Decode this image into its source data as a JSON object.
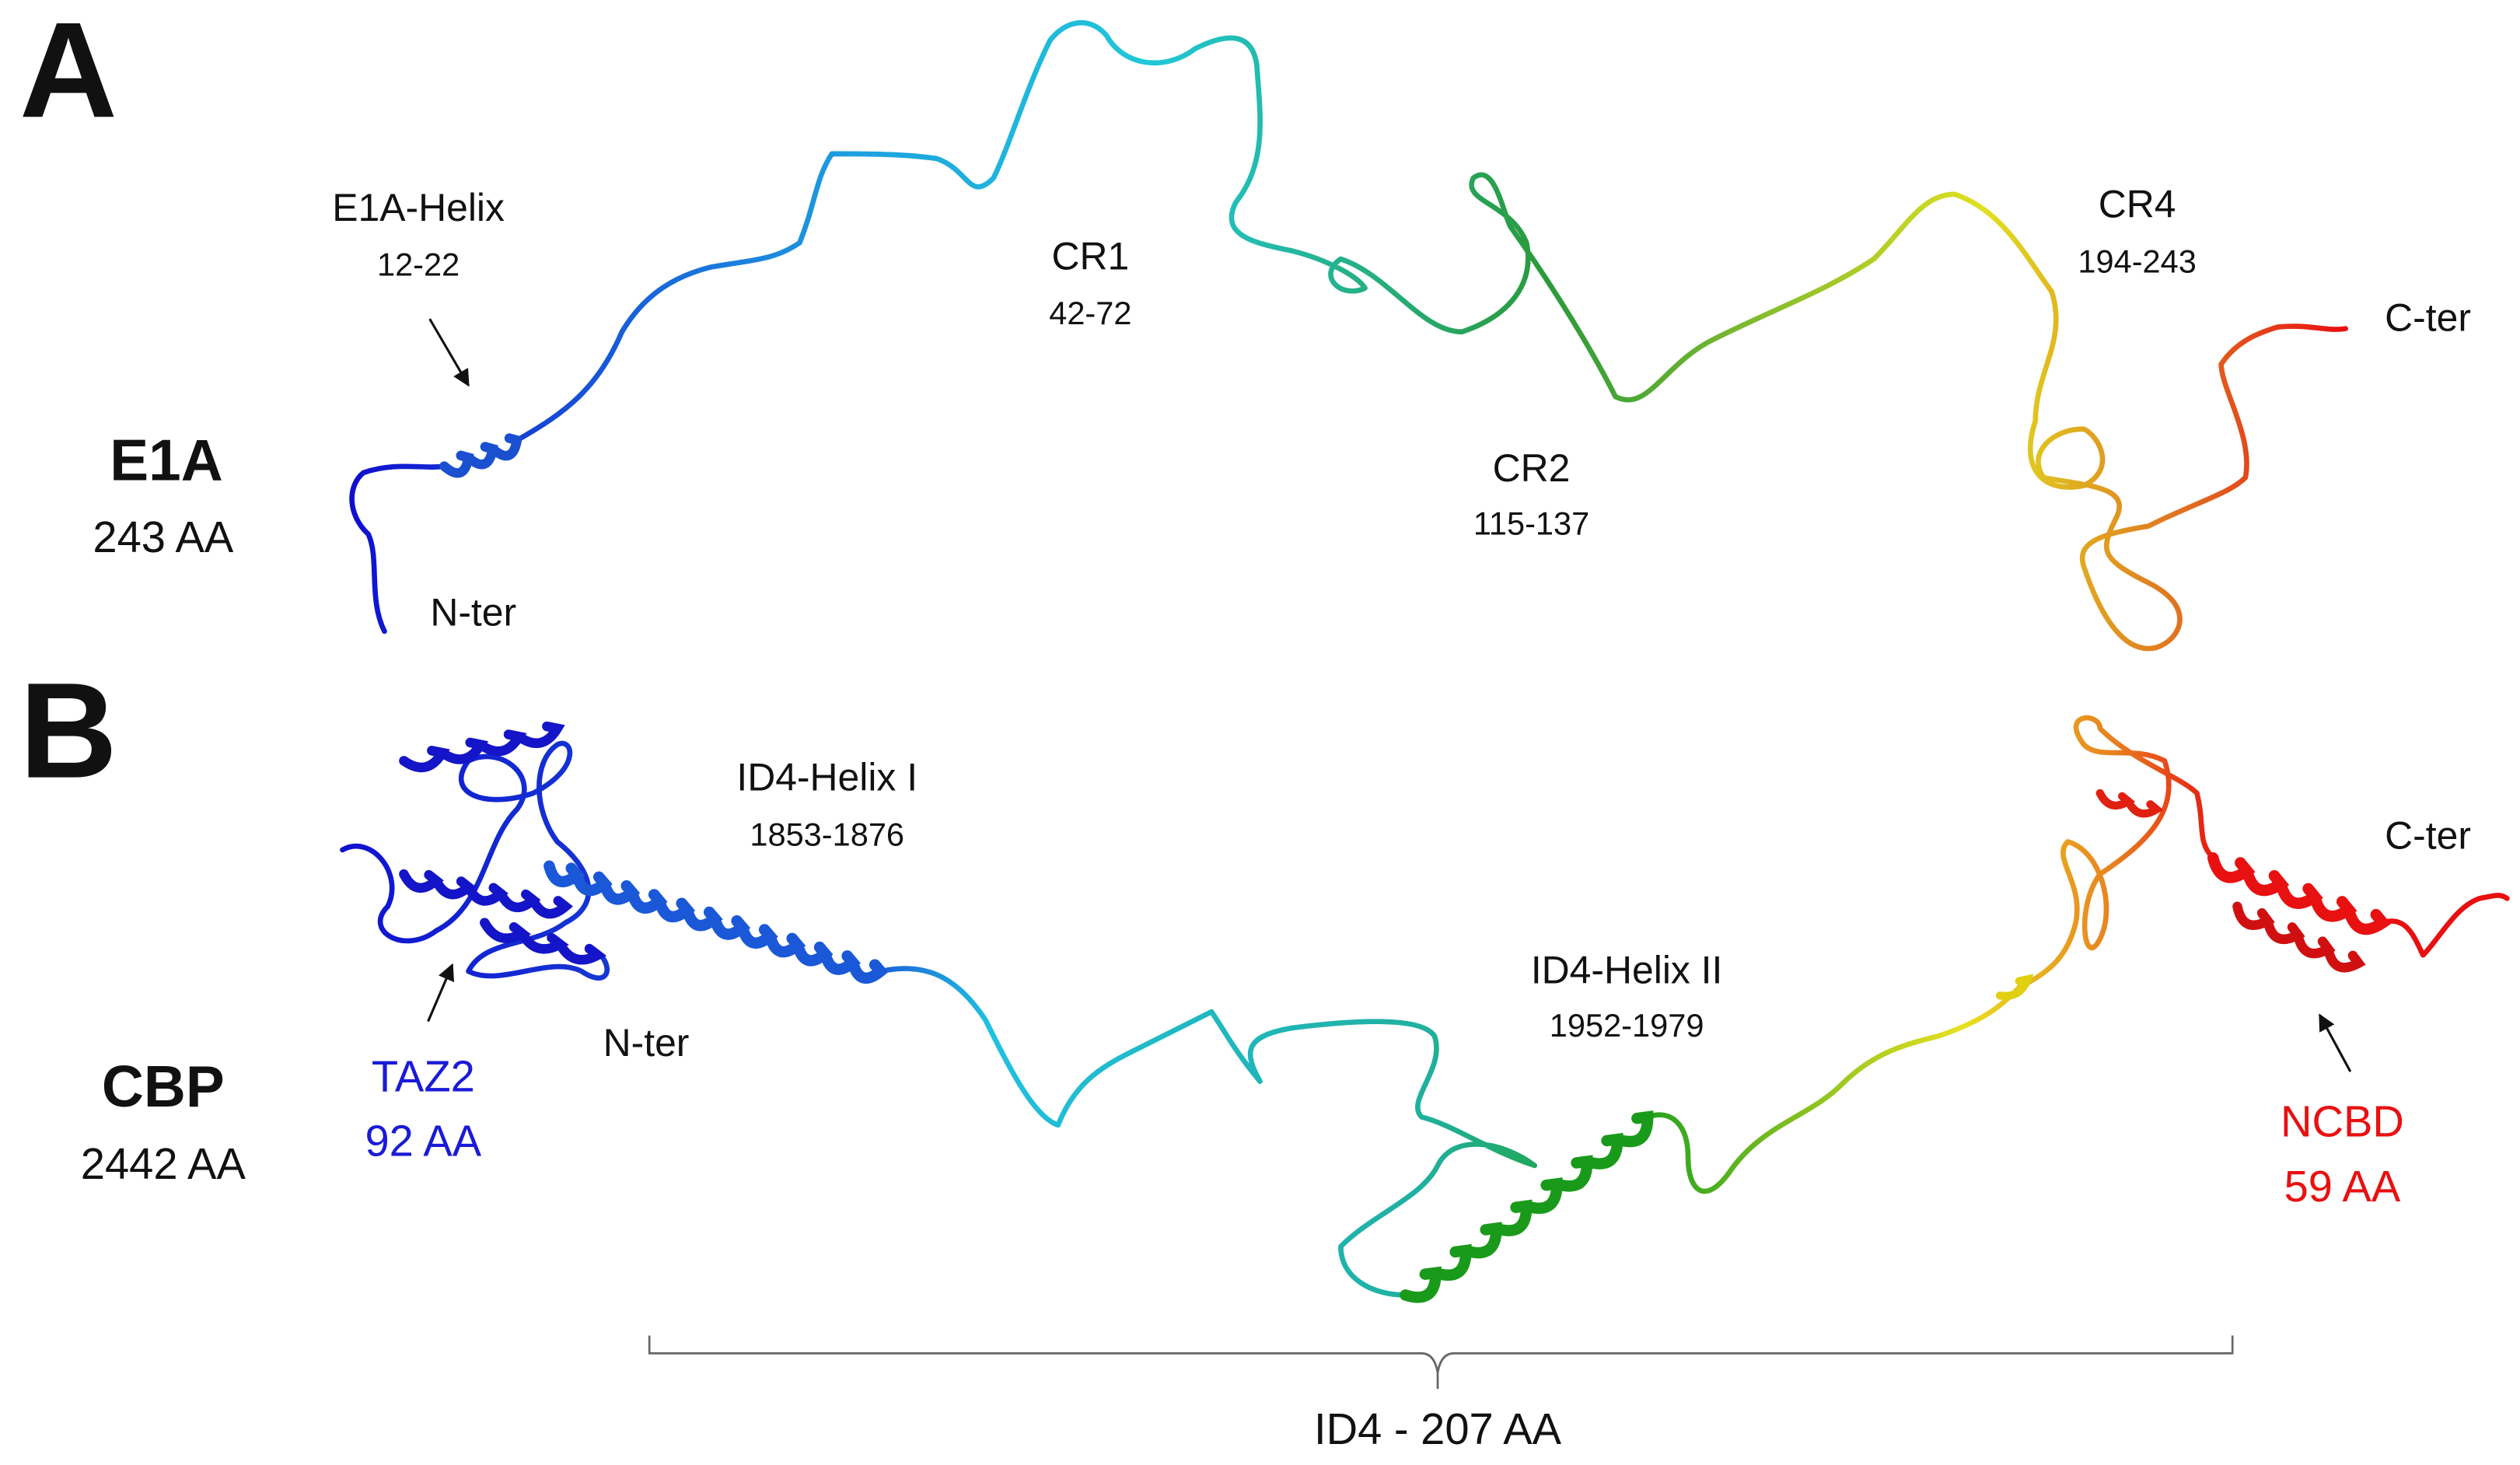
{
  "panels": [
    {
      "label": "A",
      "protein": {
        "name": "E1A",
        "length": "243 AA"
      },
      "regions": [
        {
          "name": "E1A-Helix",
          "range": "12-22"
        },
        {
          "name": "CR1",
          "range": "42-72"
        },
        {
          "name": "CR2",
          "range": "115-137"
        },
        {
          "name": "CR4",
          "range": "194-243"
        }
      ],
      "termini": {
        "n": "N-ter",
        "c": "C-ter"
      }
    },
    {
      "label": "B",
      "protein": {
        "name": "CBP",
        "length": "2442 AA"
      },
      "domains": [
        {
          "name": "TAZ2",
          "length": "92 AA"
        },
        {
          "name": "NCBD",
          "length": "59 AA"
        }
      ],
      "regions": [
        {
          "name": "ID4-Helix I",
          "range": "1853-1876"
        },
        {
          "name": "ID4-Helix II",
          "range": "1952-1979"
        }
      ],
      "termini": {
        "n": "N-ter",
        "c": "C-ter"
      },
      "span": "ID4 - 207 AA"
    }
  ]
}
